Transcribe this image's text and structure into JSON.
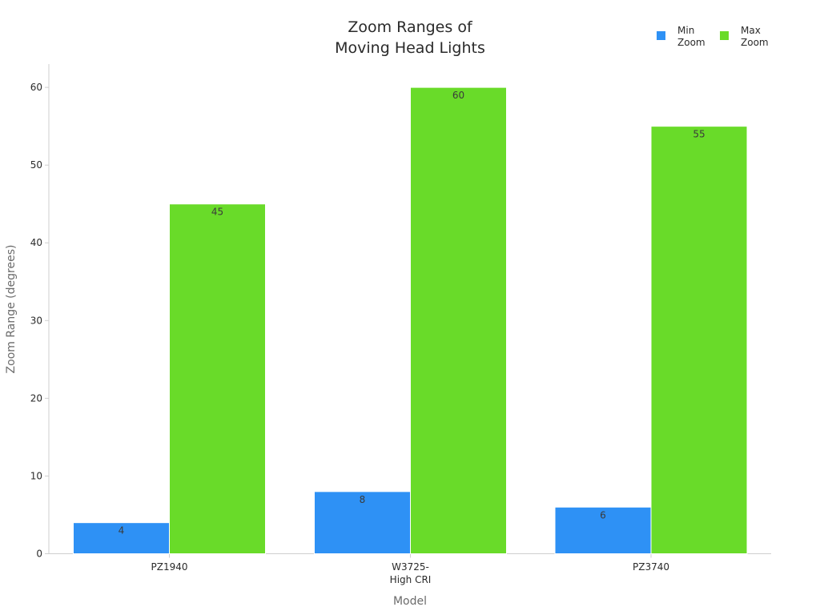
{
  "chart_data": {
    "type": "bar",
    "title": [
      "Zoom Ranges of",
      "Moving Head Lights"
    ],
    "xlabel": "Model",
    "ylabel": "Zoom Range (degrees)",
    "categories": [
      [
        "PZ1940"
      ],
      [
        "W3725-",
        "High CRI"
      ],
      [
        "PZ3740"
      ]
    ],
    "ylim": [
      0,
      63
    ],
    "yticks": [
      0,
      10,
      20,
      30,
      40,
      50,
      60
    ],
    "grid": false,
    "legend_position": "top-right",
    "series": [
      {
        "name": [
          "Min",
          "Zoom"
        ],
        "color": "#2e91f5",
        "values": [
          4,
          8,
          6
        ]
      },
      {
        "name": [
          "Max",
          "Zoom"
        ],
        "color": "#69db29",
        "values": [
          45,
          60,
          55
        ]
      }
    ]
  }
}
